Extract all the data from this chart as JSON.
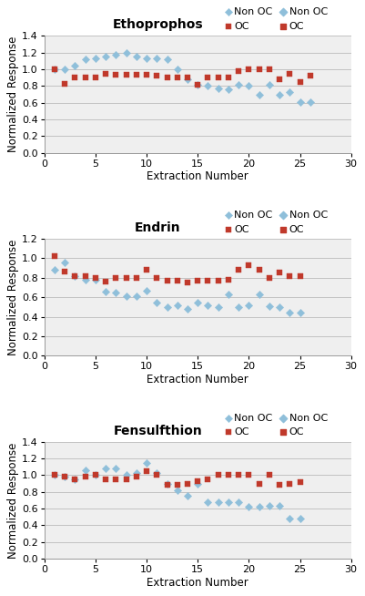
{
  "plots": [
    {
      "title": "Ethoprophos",
      "ylim": [
        0,
        1.4
      ],
      "yticks": [
        0,
        0.2,
        0.4,
        0.6,
        0.8,
        1.0,
        1.2,
        1.4
      ],
      "non_oc_x": [
        1,
        2,
        3,
        4,
        5,
        6,
        7,
        8,
        9,
        10,
        11,
        12,
        13,
        14,
        15,
        16,
        17,
        18,
        19,
        20,
        21,
        22,
        23,
        24,
        25,
        26
      ],
      "non_oc_y": [
        1.0,
        1.0,
        1.05,
        1.12,
        1.13,
        1.15,
        1.18,
        1.2,
        1.15,
        1.13,
        1.13,
        1.12,
        1.0,
        0.88,
        0.82,
        0.8,
        0.77,
        0.76,
        0.82,
        0.8,
        0.7,
        0.82,
        0.7,
        0.73,
        0.61,
        0.61
      ],
      "oc_x": [
        1,
        2,
        3,
        4,
        5,
        6,
        7,
        8,
        9,
        10,
        11,
        12,
        13,
        14,
        15,
        16,
        17,
        18,
        19,
        20,
        21,
        22,
        23,
        24,
        25,
        26
      ],
      "oc_y": [
        1.0,
        0.83,
        0.9,
        0.9,
        0.9,
        0.95,
        0.93,
        0.93,
        0.93,
        0.93,
        0.92,
        0.9,
        0.9,
        0.9,
        0.82,
        0.9,
        0.9,
        0.9,
        0.98,
        1.0,
        1.0,
        1.0,
        0.88,
        0.95,
        0.85,
        0.92
      ]
    },
    {
      "title": "Endrin",
      "ylim": [
        0,
        1.2
      ],
      "yticks": [
        0,
        0.2,
        0.4,
        0.6,
        0.8,
        1.0,
        1.2
      ],
      "non_oc_x": [
        1,
        2,
        3,
        4,
        5,
        6,
        7,
        8,
        9,
        10,
        11,
        12,
        13,
        14,
        15,
        16,
        17,
        18,
        19,
        20,
        21,
        22,
        23,
        24,
        25
      ],
      "non_oc_y": [
        0.88,
        0.96,
        0.82,
        0.78,
        0.78,
        0.66,
        0.65,
        0.61,
        0.61,
        0.67,
        0.55,
        0.5,
        0.52,
        0.48,
        0.55,
        0.52,
        0.5,
        0.63,
        0.5,
        0.52,
        0.63,
        0.51,
        0.5,
        0.44,
        0.44
      ],
      "oc_x": [
        1,
        2,
        3,
        4,
        5,
        6,
        7,
        8,
        9,
        10,
        11,
        12,
        13,
        14,
        15,
        16,
        17,
        18,
        19,
        20,
        21,
        22,
        23,
        24,
        25
      ],
      "oc_y": [
        1.02,
        0.86,
        0.82,
        0.82,
        0.8,
        0.76,
        0.8,
        0.8,
        0.8,
        0.88,
        0.8,
        0.77,
        0.77,
        0.75,
        0.77,
        0.77,
        0.77,
        0.78,
        0.88,
        0.93,
        0.88,
        0.8,
        0.85,
        0.82,
        0.82
      ]
    },
    {
      "title": "Fensulfthion",
      "ylim": [
        0,
        1.4
      ],
      "yticks": [
        0,
        0.2,
        0.4,
        0.6,
        0.8,
        1.0,
        1.2,
        1.4
      ],
      "non_oc_x": [
        1,
        2,
        3,
        4,
        5,
        6,
        7,
        8,
        9,
        10,
        11,
        12,
        13,
        14,
        15,
        16,
        17,
        18,
        19,
        20,
        21,
        22,
        23,
        24,
        25
      ],
      "non_oc_y": [
        1.0,
        0.98,
        0.95,
        1.06,
        1.0,
        1.08,
        1.08,
        1.0,
        1.03,
        1.15,
        1.03,
        0.9,
        0.82,
        0.75,
        0.9,
        0.68,
        0.68,
        0.68,
        0.68,
        0.62,
        0.62,
        0.63,
        0.63,
        0.48,
        0.48
      ],
      "oc_x": [
        1,
        2,
        3,
        4,
        5,
        6,
        7,
        8,
        9,
        10,
        11,
        12,
        13,
        14,
        15,
        16,
        17,
        18,
        19,
        20,
        21,
        22,
        23,
        24,
        25
      ],
      "oc_y": [
        1.0,
        0.98,
        0.95,
        0.98,
        1.0,
        0.95,
        0.95,
        0.95,
        0.98,
        1.05,
        1.0,
        0.88,
        0.88,
        0.9,
        0.93,
        0.95,
        1.0,
        1.0,
        1.0,
        1.0,
        0.9,
        1.0,
        0.88,
        0.9,
        0.92
      ]
    }
  ],
  "non_oc_color": "#8FBFDA",
  "oc_color": "#C0392B",
  "bg_color": "#EFEFEF",
  "xlabel": "Extraction Number",
  "ylabel": "Normalized Response",
  "xlim": [
    0,
    30
  ],
  "xticks": [
    0,
    5,
    10,
    15,
    20,
    25,
    30
  ],
  "legend_non_oc": "Non OC",
  "legend_oc": "OC",
  "title_fontsize": 10,
  "label_fontsize": 8.5,
  "tick_fontsize": 8
}
